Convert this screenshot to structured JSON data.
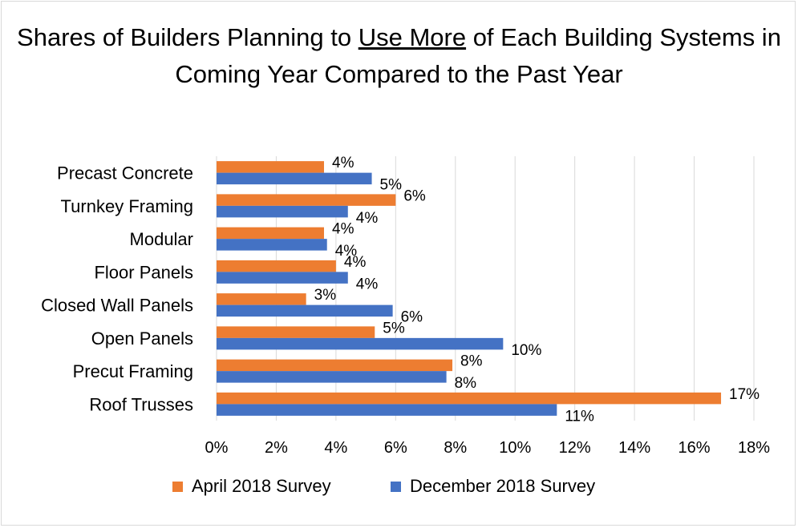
{
  "title": {
    "before": "Shares of Builders Planning to ",
    "emph": "Use More",
    "after": " of Each Building Systems in Coming Year Compared to the Past Year"
  },
  "colors": {
    "april": "#ED7D31",
    "december": "#4472C4",
    "grid": "#d9d9d9"
  },
  "chart_data": {
    "type": "bar",
    "orientation": "horizontal",
    "categories": [
      "Precast Concrete",
      "Turnkey Framing",
      "Modular",
      "Floor Panels",
      "Closed Wall Panels",
      "Open Panels",
      "Precut Framing",
      "Roof Trusses"
    ],
    "series": [
      {
        "name": "April 2018 Survey",
        "values": [
          3.6,
          6.0,
          3.6,
          4.0,
          3.0,
          5.3,
          7.9,
          16.9
        ],
        "labels": [
          "4%",
          "6%",
          "4%",
          "4%",
          "3%",
          "5%",
          "8%",
          "17%"
        ]
      },
      {
        "name": "December 2018 Survey",
        "values": [
          5.2,
          4.4,
          3.7,
          4.4,
          5.9,
          9.6,
          7.7,
          11.4
        ],
        "labels": [
          "5%",
          "4%",
          "4%",
          "4%",
          "6%",
          "10%",
          "8%",
          "11%"
        ]
      }
    ],
    "xlim": [
      0,
      18
    ],
    "xticks": [
      0,
      2,
      4,
      6,
      8,
      10,
      12,
      14,
      16,
      18
    ],
    "xtick_labels": [
      "0%",
      "2%",
      "4%",
      "6%",
      "8%",
      "10%",
      "12%",
      "14%",
      "16%",
      "18%"
    ],
    "grid": true,
    "legend": "bottom"
  }
}
